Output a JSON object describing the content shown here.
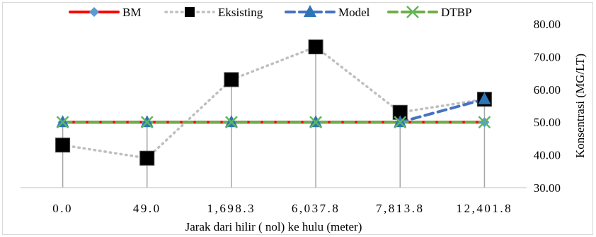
{
  "chart_data": {
    "type": "line",
    "title": "",
    "xlabel": "Jarak dari hilir ( nol) ke hulu (meter)",
    "ylabel": "Konsentrasi (MG/LT)",
    "categories": [
      "0.0",
      "49.0",
      "1,698.3",
      "6,037.8",
      "7,813.8",
      "12,401.8"
    ],
    "ylim": [
      30,
      80
    ],
    "yticks": [
      "30.00",
      "40.00",
      "50.00",
      "60.00",
      "70.00",
      "80.00"
    ],
    "y_axis_side": "right",
    "grid": false,
    "drop_lines": true,
    "legend_position": "top",
    "series": [
      {
        "name": "BM",
        "values": [
          50,
          50,
          50,
          50,
          50,
          50
        ],
        "color": "#ff0000",
        "line_style": "solid",
        "marker": "diamond",
        "marker_color": "#5b9bd5"
      },
      {
        "name": "Eksisting",
        "values": [
          43,
          39,
          63,
          73,
          53,
          57
        ],
        "color": "#bfbfbf",
        "line_style": "dotted",
        "marker": "square",
        "marker_color": "#000000"
      },
      {
        "name": "Model",
        "values": [
          50,
          50,
          50,
          50,
          50,
          57
        ],
        "color": "#4472c4",
        "line_style": "dashed",
        "marker": "triangle",
        "marker_color": "#2e75b6"
      },
      {
        "name": "DTBP",
        "values": [
          50,
          50,
          50,
          50,
          50,
          50
        ],
        "color": "#70ad47",
        "line_style": "dashed",
        "marker": "x",
        "marker_color": "#5cb85c"
      }
    ]
  }
}
